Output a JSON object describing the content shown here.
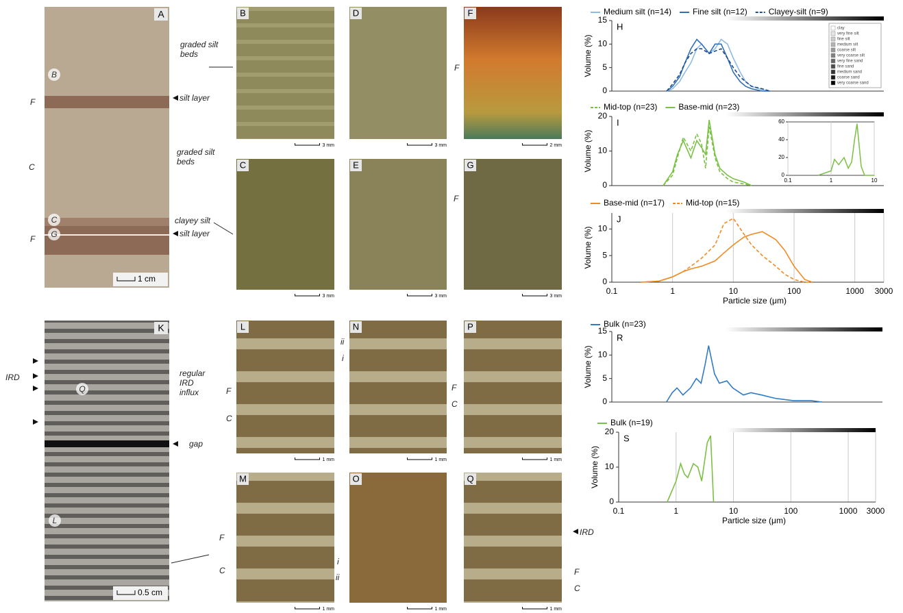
{
  "photo_panels": [
    {
      "letter": "A",
      "scale": "1 cm"
    },
    {
      "letter": "B",
      "scale": "3 mm"
    },
    {
      "letter": "C",
      "scale": "3 mm"
    },
    {
      "letter": "D",
      "scale": "3 mm"
    },
    {
      "letter": "E",
      "scale": "3 mm"
    },
    {
      "letter": "F",
      "scale": "2 mm"
    },
    {
      "letter": "G",
      "scale": "3 mm"
    },
    {
      "letter": "K",
      "scale": "0.5 cm"
    },
    {
      "letter": "L",
      "scale": "1 mm"
    },
    {
      "letter": "M",
      "scale": "1 mm"
    },
    {
      "letter": "N",
      "scale": "1 mm"
    },
    {
      "letter": "O",
      "scale": "1 mm"
    },
    {
      "letter": "P",
      "scale": "1 mm"
    },
    {
      "letter": "Q",
      "scale": "1 mm"
    }
  ],
  "annotations": [
    "graded silt beds",
    "silt layer",
    "graded silt beds",
    "clayey silt",
    "silt layer",
    "F",
    "C",
    "F",
    "B",
    "C",
    "G",
    "F",
    "F",
    "IRD",
    "Q",
    "L",
    "regular IRD influx",
    "gap",
    "F",
    "C",
    "ii",
    "i",
    "F",
    "C",
    "F",
    "C",
    "i",
    "ii",
    "IRD",
    "F",
    "C"
  ],
  "chart_data": [
    {
      "type": "line",
      "label": "H",
      "ylabel": "Volume (%)",
      "xlog": true,
      "xlim": [
        0.1,
        3000
      ],
      "ylim": [
        0,
        15
      ],
      "yticks": [
        0,
        5,
        10,
        15
      ],
      "grain_size_classes": [
        "clay",
        "very fine silt",
        "fine silt",
        "medium silt",
        "coarse silt",
        "very coarse silt",
        "very fine sand",
        "fine sand",
        "medium sand",
        "coarse sand",
        "very coarse sand"
      ],
      "x": [
        0.8,
        1,
        1.3,
        1.6,
        2,
        2.5,
        3,
        4,
        5,
        6.3,
        8,
        10,
        13,
        16,
        20,
        30,
        40
      ],
      "series": [
        {
          "name": "Medium silt (n=14)",
          "color": "#8dbbe6",
          "dashed": false,
          "values": [
            0,
            0.5,
            2,
            4,
            6,
            9,
            10,
            8,
            9,
            11,
            10,
            7,
            4,
            2,
            1,
            0.3,
            0
          ]
        },
        {
          "name": "Fine silt (n=12)",
          "color": "#2f6fb5",
          "dashed": false,
          "values": [
            0,
            1,
            3,
            6,
            9,
            11,
            10,
            8,
            10,
            10,
            7,
            4,
            2,
            1,
            0.5,
            0,
            0
          ]
        },
        {
          "name": "Clayey-silt (n=9)",
          "color": "#1e4a90",
          "dashed": true,
          "values": [
            0,
            1.5,
            3.5,
            6,
            8,
            9,
            9,
            8,
            8.5,
            9,
            7,
            5,
            3,
            2,
            1,
            0.5,
            0
          ]
        }
      ]
    },
    {
      "type": "line",
      "label": "I",
      "ylabel": "Volume (%)",
      "xlog": true,
      "xlim": [
        0.1,
        3000
      ],
      "ylim": [
        0,
        20
      ],
      "yticks": [
        0,
        10,
        20
      ],
      "x": [
        0.7,
        1,
        1.2,
        1.5,
        2,
        2.5,
        3,
        3.5,
        4,
        5,
        6,
        8,
        10,
        15,
        20
      ],
      "series": [
        {
          "name": "Mid-top (n=23)",
          "color": "#7ac143",
          "dashed": true,
          "values": [
            0,
            3,
            8,
            14,
            10,
            15,
            12,
            5,
            17,
            8,
            4,
            2,
            1,
            0.5,
            0
          ]
        },
        {
          "name": "Base-mid (n=23)",
          "color": "#7ac143",
          "dashed": false,
          "values": [
            0,
            4,
            9,
            13,
            8,
            13,
            11,
            9,
            19,
            9,
            5,
            3,
            2,
            1,
            0
          ]
        }
      ],
      "inset": {
        "xlim": [
          0.1,
          10
        ],
        "xticks": [
          0.1,
          1,
          10
        ],
        "ylim": [
          0,
          60
        ],
        "yticks": [
          0,
          20,
          40,
          60
        ],
        "color": "#7ac143",
        "x": [
          0.5,
          1,
          1.2,
          1.5,
          2,
          2.5,
          3,
          3.5,
          4,
          5,
          6,
          10
        ],
        "values": [
          0,
          5,
          18,
          12,
          20,
          8,
          15,
          40,
          58,
          10,
          0,
          0
        ]
      }
    },
    {
      "type": "line",
      "label": "J",
      "ylabel": "Volume (%)",
      "xlabel": "Particle size (μm)",
      "xlog": true,
      "xlim": [
        0.1,
        3000
      ],
      "ylim": [
        0,
        13
      ],
      "yticks": [
        0,
        5,
        10
      ],
      "xticks": [
        0.1,
        1,
        10,
        100,
        1000,
        3000
      ],
      "x": [
        0.3,
        0.6,
        1,
        1.5,
        2,
        3,
        5,
        7,
        10,
        15,
        20,
        30,
        50,
        70,
        100,
        150,
        200
      ],
      "series": [
        {
          "name": "Base-mid (n=17)",
          "color": "#f08a24",
          "dashed": false,
          "values": [
            0,
            0.2,
            1,
            2,
            2.5,
            3,
            4,
            5.5,
            7,
            8.5,
            9,
            9.5,
            8,
            6,
            3,
            0.5,
            0
          ]
        },
        {
          "name": "Mid-top (n=15)",
          "color": "#f08a24",
          "dashed": true,
          "values": [
            0,
            0.2,
            1,
            2,
            3,
            4.5,
            7,
            11,
            12,
            9,
            7,
            5,
            3,
            1.5,
            0.5,
            0,
            0
          ]
        }
      ]
    },
    {
      "type": "line",
      "label": "R",
      "ylabel": "Volume (%)",
      "xlog": true,
      "xlim": [
        0.1,
        3000
      ],
      "ylim": [
        0,
        15
      ],
      "yticks": [
        0,
        5,
        10,
        15
      ],
      "x": [
        0.8,
        1,
        1.2,
        1.5,
        2,
        2.5,
        3,
        3.5,
        4,
        5,
        6,
        8,
        10,
        15,
        20,
        30,
        50,
        100,
        200,
        300
      ],
      "series": [
        {
          "name": "Bulk (n=23)",
          "color": "#2f7bc4",
          "dashed": false,
          "values": [
            0,
            2,
            3,
            1.5,
            3,
            5,
            4,
            8,
            12,
            6,
            4,
            4.5,
            3,
            1.5,
            2,
            1.5,
            0.8,
            0.3,
            0.3,
            0
          ]
        }
      ]
    },
    {
      "type": "line",
      "label": "S",
      "ylabel": "Volume (%)",
      "xlabel": "Particle size (μm)",
      "xlog": true,
      "xlim": [
        0.1,
        3000
      ],
      "ylim": [
        0,
        20
      ],
      "yticks": [
        0,
        10,
        20
      ],
      "xticks": [
        0.1,
        1,
        10,
        100,
        1000,
        3000
      ],
      "x": [
        0.7,
        1,
        1.2,
        1.4,
        1.6,
        2,
        2.4,
        2.8,
        3.5,
        4,
        4.5
      ],
      "series": [
        {
          "name": "Bulk (n=19)",
          "color": "#7ac143",
          "dashed": false,
          "values": [
            0,
            6,
            11,
            8,
            7,
            11,
            10,
            6,
            17,
            19,
            0
          ]
        }
      ]
    }
  ]
}
